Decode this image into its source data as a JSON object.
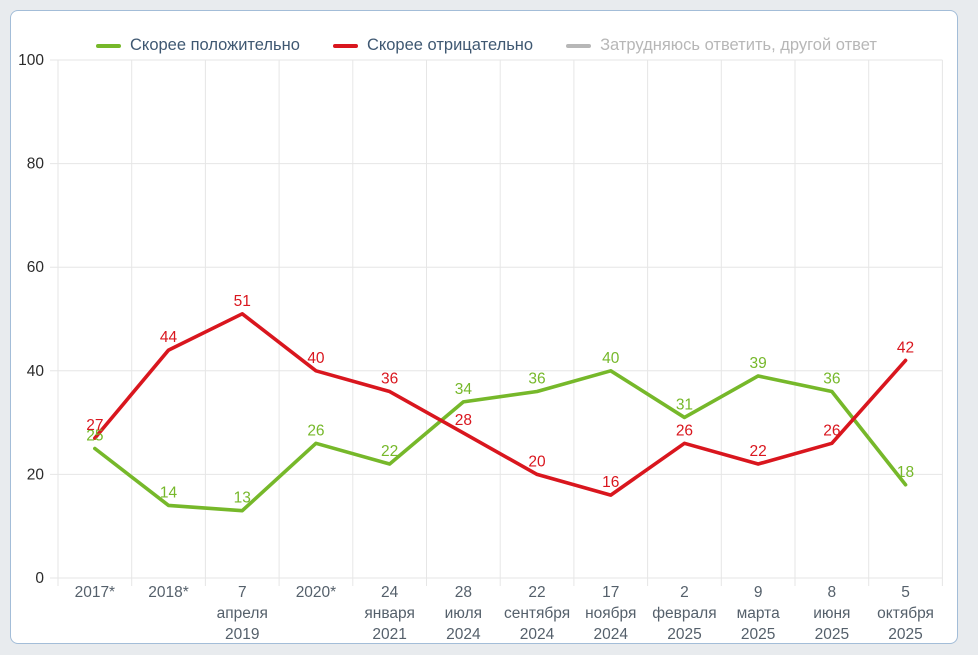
{
  "legend": {
    "items": [
      {
        "label": "Скорее положительно",
        "color": "#76b82a",
        "active": true
      },
      {
        "label": "Скорее отрицательно",
        "color": "#d9161e",
        "active": true
      },
      {
        "label": "Затрудняюсь ответить, другой ответ",
        "color": "#b7b7b7",
        "active": false
      }
    ]
  },
  "chart_data": {
    "type": "line",
    "title": "",
    "categories": [
      "2017*",
      "2018*",
      "7 апреля 2019",
      "2020*",
      "24 января 2021",
      "28 июля 2024",
      "22 сентября 2024",
      "17 ноября 2024",
      "2 февраля 2025",
      "9 марта 2025",
      "8 июня 2025",
      "5 октября 2025"
    ],
    "series": [
      {
        "name": "Скорее положительно",
        "color": "#76b82a",
        "hidden": false,
        "values": [
          25,
          14,
          13,
          26,
          22,
          34,
          36,
          40,
          31,
          39,
          36,
          18
        ]
      },
      {
        "name": "Скорее отрицательно",
        "color": "#d9161e",
        "hidden": false,
        "values": [
          27,
          44,
          51,
          40,
          36,
          28,
          20,
          16,
          26,
          22,
          26,
          42
        ]
      },
      {
        "name": "Затрудняюсь ответить, другой ответ",
        "color": "#b7b7b7",
        "hidden": true,
        "values": []
      }
    ],
    "ylim": [
      0,
      100
    ],
    "yticks": [
      0,
      20,
      40,
      60,
      80,
      100
    ],
    "grid": true,
    "legend_position": "top",
    "data_labels": true,
    "colors": {
      "grid": "#e6e6e6",
      "axis_line": "#e0e0e0",
      "y_label": "#2b2b2b",
      "x_label": "#55606b",
      "legend_text": "#3f5872",
      "legend_disabled": "#b7b7b7",
      "panel_border": "#a3bdd8",
      "panel_bg": "#ffffff",
      "page_bg": "#e8ebee"
    }
  }
}
